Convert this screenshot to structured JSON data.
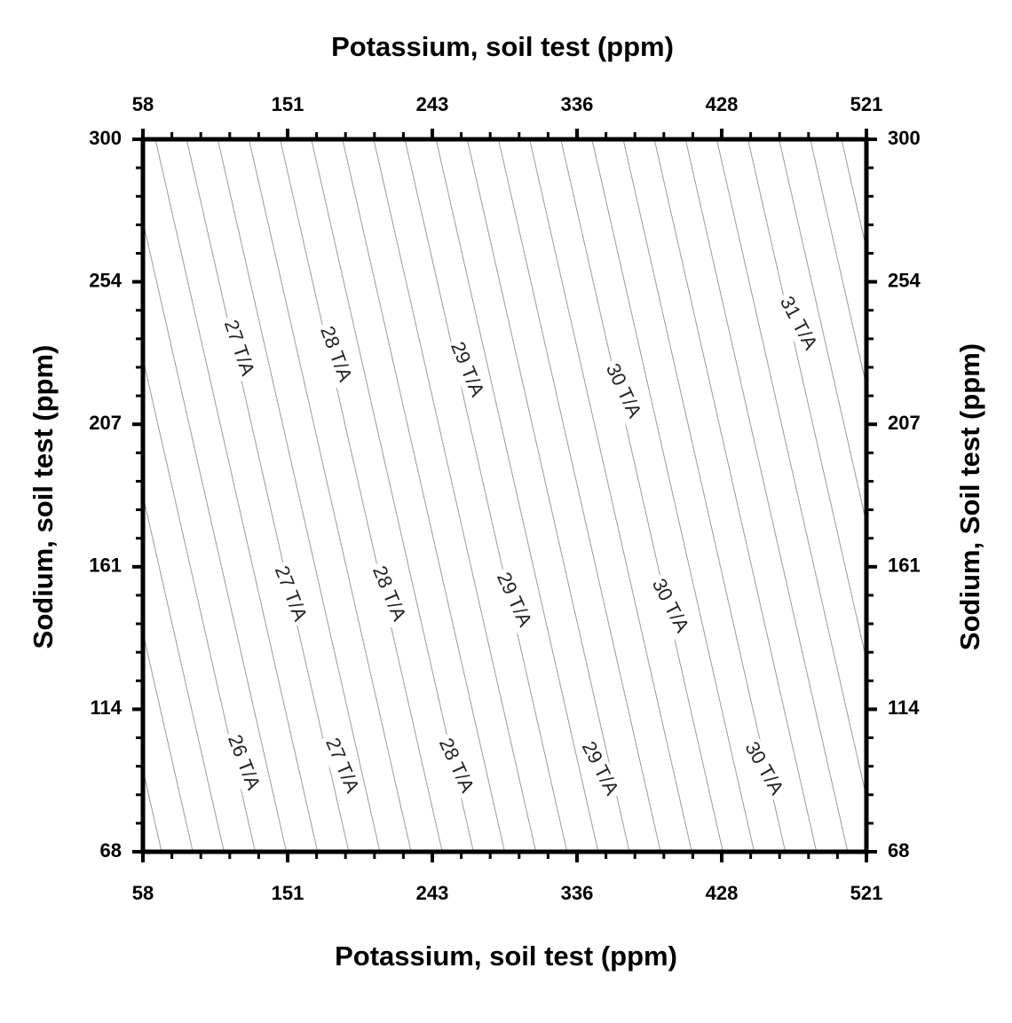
{
  "chart_data": {
    "type": "contour",
    "title_top": "Potassium, soil test (ppm)",
    "xlabel": "Potassium, soil test (ppm)",
    "ylabel_left": "Sodium, soil test (ppm)",
    "ylabel_right": "Sodium, Soil test (ppm)",
    "x_ticks": [
      "58",
      "151",
      "243",
      "336",
      "428",
      "521"
    ],
    "y_ticks": [
      "300",
      "254",
      "207",
      "161",
      "114",
      "68"
    ],
    "xlim": [
      58,
      521
    ],
    "ylim": [
      68,
      300
    ],
    "z_unit": "T/A",
    "contour_step": 0.25,
    "labels": [
      {
        "text": "31 T/A",
        "k": 477,
        "na": 240
      },
      {
        "text": "30 T/A",
        "k": 365,
        "na": 218
      },
      {
        "text": "29 T/A",
        "k": 265,
        "na": 225
      },
      {
        "text": "28 T/A",
        "k": 181,
        "na": 230
      },
      {
        "text": "27 T/A",
        "k": 119,
        "na": 232
      },
      {
        "text": "30 T/A",
        "k": 395,
        "na": 148
      },
      {
        "text": "29 T/A",
        "k": 295,
        "na": 150
      },
      {
        "text": "28 T/A",
        "k": 215,
        "na": 152
      },
      {
        "text": "27 T/A",
        "k": 152,
        "na": 152
      },
      {
        "text": "30 T/A",
        "k": 455,
        "na": 95
      },
      {
        "text": "29 T/A",
        "k": 350,
        "na": 95
      },
      {
        "text": "28 T/A",
        "k": 258,
        "na": 96
      },
      {
        "text": "27 T/A",
        "k": 185,
        "na": 96
      },
      {
        "text": "26 T/A",
        "k": 122,
        "na": 97
      }
    ]
  }
}
